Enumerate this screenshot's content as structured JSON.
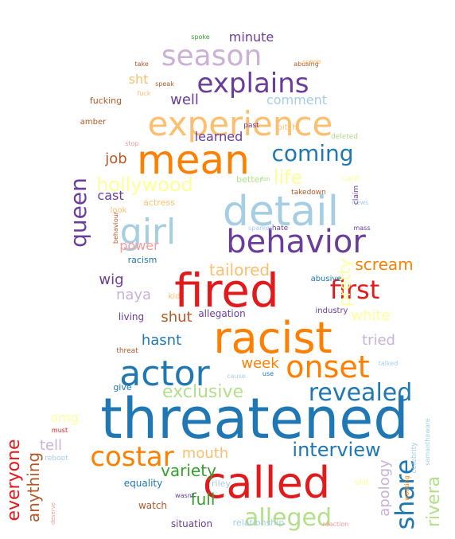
{
  "words": [
    {
      "text": "threatened",
      "color": "#1f78b4"
    },
    {
      "text": "called",
      "color": "#e31a1c"
    },
    {
      "text": "fired",
      "color": "#e31a1c"
    },
    {
      "text": "racist",
      "color": "#ff7f00"
    },
    {
      "text": "detail",
      "color": "#a6cee3"
    },
    {
      "text": "mean",
      "color": "#ff7f00"
    },
    {
      "text": "experience",
      "color": "#fdbf6f"
    },
    {
      "text": "behavior",
      "color": "#6a3d9a"
    },
    {
      "text": "actor",
      "color": "#1f78b4"
    },
    {
      "text": "girl",
      "color": "#a6cee3"
    },
    {
      "text": "onset",
      "color": "#ff7f00"
    },
    {
      "text": "season",
      "color": "#cab2d6"
    },
    {
      "text": "explains",
      "color": "#6a3d9a"
    },
    {
      "text": "costar",
      "color": "#ff7f00"
    },
    {
      "text": "alleged",
      "color": "#b2df8a"
    },
    {
      "text": "share",
      "color": "#1f78b4"
    },
    {
      "text": "revealed",
      "color": "#1f78b4"
    },
    {
      "text": "coming",
      "color": "#1f78b4"
    },
    {
      "text": "first",
      "color": "#e31a1c"
    },
    {
      "text": "queen",
      "color": "#6a3d9a"
    },
    {
      "text": "interview",
      "color": "#1f78b4"
    },
    {
      "text": "exclusive",
      "color": "#b2df8a"
    },
    {
      "text": "hollywood",
      "color": "#ffff99"
    },
    {
      "text": "life",
      "color": "#ffff99"
    },
    {
      "text": "everyone",
      "color": "#e31a1c"
    },
    {
      "text": "rivera",
      "color": "#b2df8a"
    },
    {
      "text": "tailored",
      "color": "#fdbf6f"
    },
    {
      "text": "scream",
      "color": "#ff7f00"
    },
    {
      "text": "variety",
      "color": "#33a02c"
    },
    {
      "text": "mouth",
      "color": "#fdbf6f"
    },
    {
      "text": "full",
      "color": "#33a02c"
    },
    {
      "text": "anything",
      "color": "#b15928"
    },
    {
      "text": "pretty",
      "color": "#ffff99"
    },
    {
      "text": "apology",
      "color": "#cab2d6"
    },
    {
      "text": "white",
      "color": "#ffff99"
    },
    {
      "text": "tried",
      "color": "#cab2d6"
    },
    {
      "text": "hasnt",
      "color": "#1f78b4"
    },
    {
      "text": "shut",
      "color": "#b15928"
    },
    {
      "text": "week",
      "color": "#ff7f00"
    },
    {
      "text": "tell",
      "color": "#cab2d6"
    },
    {
      "text": "job",
      "color": "#b15928"
    },
    {
      "text": "naya",
      "color": "#cab2d6"
    },
    {
      "text": "wig",
      "color": "#6a3d9a"
    },
    {
      "text": "comment",
      "color": "#a6cee3"
    },
    {
      "text": "well",
      "color": "#6a3d9a"
    },
    {
      "text": "minute",
      "color": "#6a3d9a"
    },
    {
      "text": "learned",
      "color": "#6a3d9a"
    },
    {
      "text": "power",
      "color": "#fb9a99"
    },
    {
      "text": "cast",
      "color": "#6a3d9a"
    },
    {
      "text": "omg",
      "color": "#ffff99"
    },
    {
      "text": "sht",
      "color": "#fdbf6f"
    },
    {
      "text": "give",
      "color": "#1f78b4"
    },
    {
      "text": "situation",
      "color": "#6a3d9a"
    },
    {
      "text": "relationship",
      "color": "#a6cee3"
    },
    {
      "text": "allegation",
      "color": "#6a3d9a"
    },
    {
      "text": "equality",
      "color": "#1f78b4"
    },
    {
      "text": "watch",
      "color": "#b15928"
    },
    {
      "text": "racism",
      "color": "#1f78b4"
    },
    {
      "text": "living",
      "color": "#6a3d9a"
    },
    {
      "text": "riley",
      "color": "#a6cee3"
    },
    {
      "text": "better",
      "color": "#b2df8a"
    },
    {
      "text": "actress",
      "color": "#fdbf6f"
    },
    {
      "text": "fucking",
      "color": "#b15928"
    },
    {
      "text": "abusive",
      "color": "#1f78b4"
    },
    {
      "text": "industry",
      "color": "#6a3d9a"
    },
    {
      "text": "celebrity",
      "color": "#a6cee3"
    },
    {
      "text": "samanthaware",
      "color": "#a6cee3"
    },
    {
      "text": "working",
      "color": "#ff7f00"
    },
    {
      "text": "spoke",
      "color": "#33a02c"
    },
    {
      "text": "scene",
      "color": "#fdbf6f"
    },
    {
      "text": "take",
      "color": "#b15928"
    },
    {
      "text": "abusing",
      "color": "#b15928"
    },
    {
      "text": "speak",
      "color": "#b15928"
    },
    {
      "text": "fuck",
      "color": "#fdbf6f"
    },
    {
      "text": "amber",
      "color": "#b15928"
    },
    {
      "text": "past",
      "color": "#6a3d9a"
    },
    {
      "text": "bitch",
      "color": "#fdbf6f"
    },
    {
      "text": "deleted",
      "color": "#b2df8a"
    },
    {
      "text": "stop",
      "color": "#fb9a99"
    },
    {
      "text": "look",
      "color": "#fdbf6f"
    },
    {
      "text": "kid",
      "color": "#fdbf6f"
    },
    {
      "text": "hate",
      "color": "#6a3d9a"
    },
    {
      "text": "sparked",
      "color": "#a6cee3"
    },
    {
      "text": "mass",
      "color": "#6a3d9a"
    },
    {
      "text": "news",
      "color": "#a6cee3"
    },
    {
      "text": "claim",
      "color": "#6a3d9a"
    },
    {
      "text": "takedown",
      "color": "#b15928"
    },
    {
      "text": "cant",
      "color": "#ffff99"
    },
    {
      "text": "behaviour",
      "color": "#b15928"
    },
    {
      "text": "threat",
      "color": "#b15928"
    },
    {
      "text": "cause",
      "color": "#a6cee3"
    },
    {
      "text": "use",
      "color": "#1f78b4"
    },
    {
      "text": "talked",
      "color": "#a6cee3"
    },
    {
      "text": "must",
      "color": "#e31a1c"
    },
    {
      "text": "reboot",
      "color": "#a6cee3"
    },
    {
      "text": "deserve",
      "color": "#fb9a99"
    },
    {
      "text": "wasnt",
      "color": "#6a3d9a"
    },
    {
      "text": "shit",
      "color": "#ffff99"
    },
    {
      "text": "reaction",
      "color": "#fb9a99"
    },
    {
      "text": "fan",
      "color": "#b2df8a"
    }
  ]
}
